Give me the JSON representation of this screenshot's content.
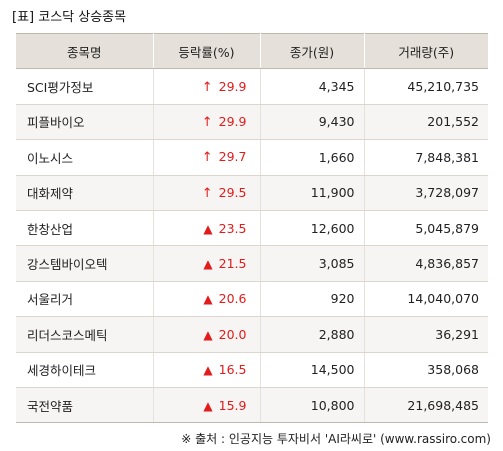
{
  "title": "[표] 코스닥 상승종목",
  "columns": [
    "종목명",
    "등락률(%)",
    "종가(원)",
    "거래량(주)"
  ],
  "rows": [
    {
      "name": "SCI평가정보",
      "icon": "up-arrow-icon",
      "glyph": "↑",
      "rate": "29.9",
      "price": "4,345",
      "volume": "45,210,735"
    },
    {
      "name": "피플바이오",
      "icon": "up-arrow-icon",
      "glyph": "↑",
      "rate": "29.9",
      "price": "9,430",
      "volume": "201,552"
    },
    {
      "name": "이노시스",
      "icon": "up-arrow-icon",
      "glyph": "↑",
      "rate": "29.7",
      "price": "1,660",
      "volume": "7,848,381"
    },
    {
      "name": "대화제약",
      "icon": "up-arrow-icon",
      "glyph": "↑",
      "rate": "29.5",
      "price": "11,900",
      "volume": "3,728,097"
    },
    {
      "name": "한창산업",
      "icon": "up-triangle-icon",
      "glyph": "▲",
      "rate": "23.5",
      "price": "12,600",
      "volume": "5,045,879"
    },
    {
      "name": "강스템바이오텍",
      "icon": "up-triangle-icon",
      "glyph": "▲",
      "rate": "21.5",
      "price": "3,085",
      "volume": "4,836,857"
    },
    {
      "name": "서울리거",
      "icon": "up-triangle-icon",
      "glyph": "▲",
      "rate": "20.6",
      "price": "920",
      "volume": "14,040,070"
    },
    {
      "name": "리더스코스메틱",
      "icon": "up-triangle-icon",
      "glyph": "▲",
      "rate": "20.0",
      "price": "2,880",
      "volume": "36,291"
    },
    {
      "name": "세경하이테크",
      "icon": "up-triangle-icon",
      "glyph": "▲",
      "rate": "16.5",
      "price": "14,500",
      "volume": "358,068"
    },
    {
      "name": "국전약품",
      "icon": "up-triangle-icon",
      "glyph": "▲",
      "rate": "15.9",
      "price": "10,800",
      "volume": "21,698,485"
    }
  ],
  "source": "※ 출처 : 인공지능 투자비서 'AI라씨로' (www.rassiro.com)",
  "colors": {
    "up": "#e21b1b",
    "header_bg": "#e5e0d9",
    "stripe": "#f7f5f3"
  }
}
